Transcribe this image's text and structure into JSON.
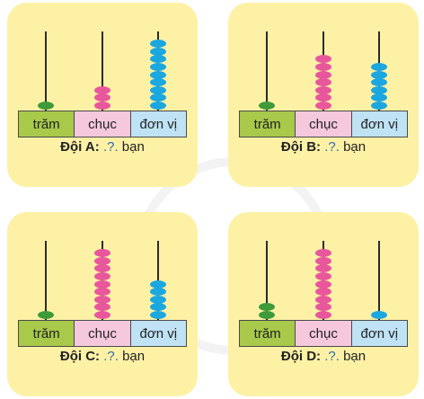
{
  "labels": {
    "tram": "trăm",
    "chuc": "chục",
    "donvi": "đơn vị"
  },
  "teams": [
    {
      "name": "Đội A:",
      "blank": ".?.",
      "unit": "bạn",
      "hundreds": 1,
      "tens": 3,
      "ones": 9
    },
    {
      "name": "Đội B:",
      "blank": ".?.",
      "unit": "bạn",
      "hundreds": 1,
      "tens": 7,
      "ones": 6
    },
    {
      "name": "Đội C:",
      "blank": ".?.",
      "unit": "bạn",
      "hundreds": 1,
      "tens": 9,
      "ones": 5
    },
    {
      "name": "Đội D:",
      "blank": ".?.",
      "unit": "bạn",
      "hundreds": 2,
      "tens": 9,
      "ones": 1
    }
  ],
  "colors": {
    "card": "#fdf1a6",
    "hundreds_bead": "#3f9b3a",
    "tens_bead": "#e8579b",
    "ones_bead": "#1ba7e0"
  }
}
